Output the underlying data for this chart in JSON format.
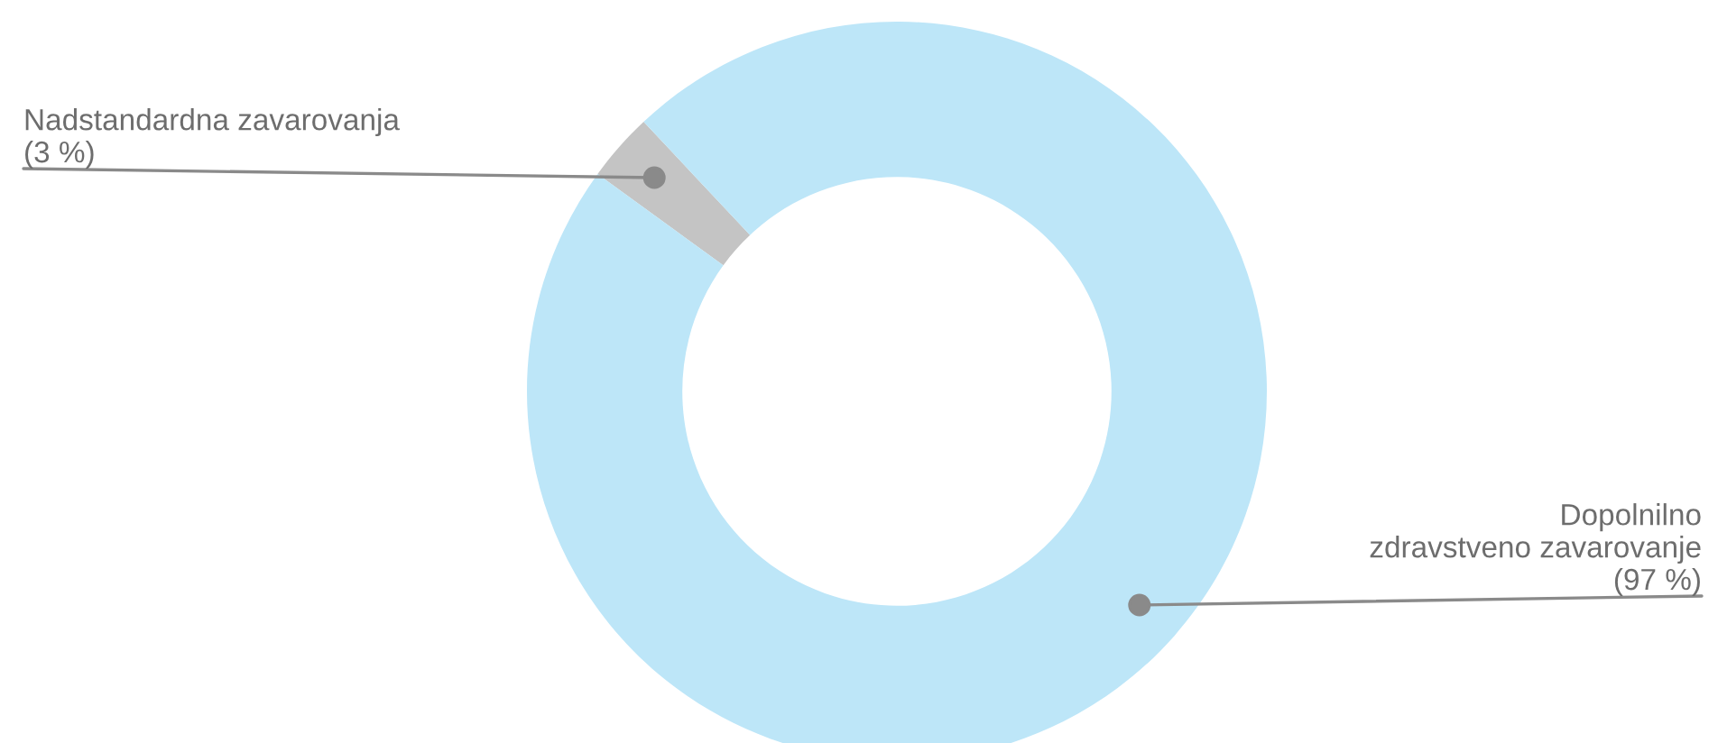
{
  "chart_data": {
    "type": "donut",
    "categories": [
      "Nadstandardna zavarovanja",
      "Dopolnilno\nzdravstveno zavarovanje"
    ],
    "values": [
      3,
      97
    ],
    "colors": [
      "#c4c4c4",
      "#bde6f8"
    ],
    "value_labels": [
      "(3 %)",
      "(97 %)"
    ],
    "legend": false
  }
}
